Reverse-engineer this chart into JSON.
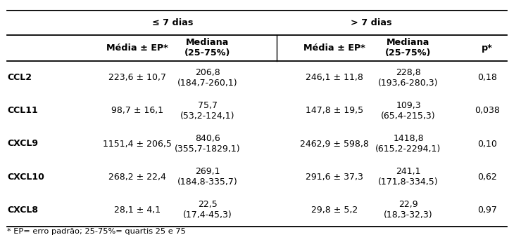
{
  "group_headers": [
    "≤ 7 dias",
    "> 7 dias"
  ],
  "sub_headers": [
    "Média ± EP*",
    "Mediana\n(25-75%)",
    "Média ± EP*",
    "Mediana\n(25-75%)",
    "p*"
  ],
  "rows": [
    {
      "name": "CCL2",
      "mean1": "223,6 ± 10,7",
      "median1": "206,8\n(184,7-260,1)",
      "mean2": "246,1 ± 11,8",
      "median2": "228,8\n(193,6-280,3)",
      "p": "0,18"
    },
    {
      "name": "CCL11",
      "mean1": "98,7 ± 16,1",
      "median1": "75,7\n(53,2-124,1)",
      "mean2": "147,8 ± 19,5",
      "median2": "109,3\n(65,4-215,3)",
      "p": "0,038"
    },
    {
      "name": "CXCL9",
      "mean1": "1151,4 ± 206,5",
      "median1": "840,6\n(355,7-1829,1)",
      "mean2": "2462,9 ± 598,8",
      "median2": "1418,8\n(615,2-2294,1)",
      "p": "0,10"
    },
    {
      "name": "CXCL10",
      "mean1": "268,2 ± 22,4",
      "median1": "269,1\n(184,8-335,7)",
      "mean2": "291,6 ± 37,3",
      "median2": "241,1\n(171,8-334,5)",
      "p": "0,62"
    },
    {
      "name": "CXCL8",
      "mean1": "28,1 ± 4,1",
      "median1": "22,5\n(17,4-45,3)",
      "mean2": "29,8 ± 5,2",
      "median2": "22,9\n(18,3-32,3)",
      "p": "0,97"
    }
  ],
  "footnote": "* EP= erro padrão; 25-75%= quartis 25 e 75",
  "background": "#ffffff",
  "text_color": "#000000",
  "header_fontsize": 9.2,
  "data_fontsize": 9.0,
  "footnote_fontsize": 8.2
}
